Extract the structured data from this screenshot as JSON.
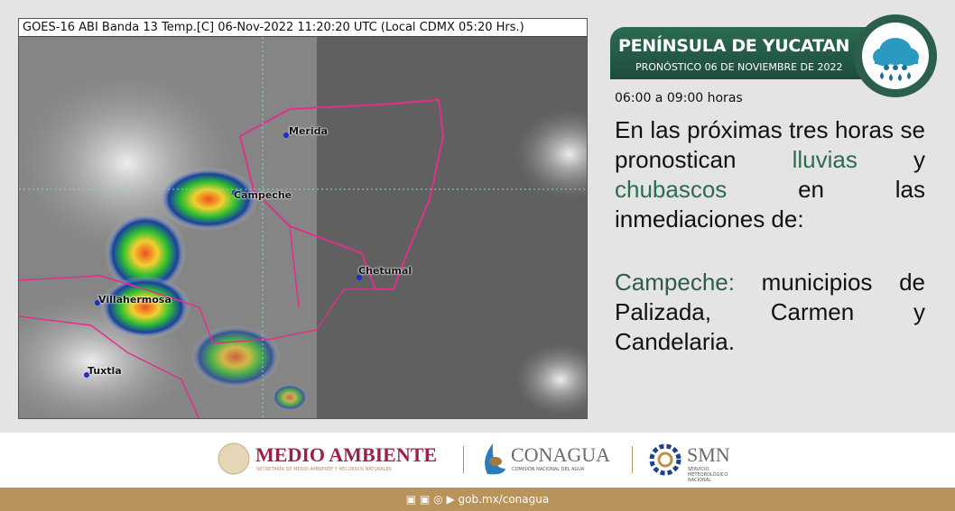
{
  "map": {
    "caption": "GOES-16 ABI Banda 13 Temp.[C] 06-Nov-2022 11:20:20 UTC (Local CDMX  05:20 Hrs.)",
    "cities": [
      "Merida",
      "Campeche",
      "Chetumal",
      "Villahermosa",
      "Tuxtla"
    ],
    "colors": {
      "land_border": "#e0308a",
      "grid": "#7fd6d6",
      "city_dot": "#1a2bd0"
    }
  },
  "header": {
    "title": "PENÍNSULA DE YUCATAN",
    "subtitle": "PRONÓSTICO 06 DE NOVIEMBRE DE 2022",
    "icon": "rain-cloud-icon",
    "color": "#2c6a52"
  },
  "forecast": {
    "hours": "06:00 a 09:00 horas",
    "intro_a": "En las próximas tres horas se pronostican ",
    "lluvias": "lluvias",
    "y": " y ",
    "chubascos": "chubascos",
    "intro_b": " en las inmediaciones de:",
    "state": "Campeche:",
    "municipalities": " municipios de Palizada, Carmen y Candelaria."
  },
  "footer": {
    "medio_ambiente": "MEDIO AMBIENTE",
    "medio_ambiente_sub": "SECRETARÍA DE MEDIO AMBIENTE Y RECURSOS NATURALES",
    "conagua": "CONAGUA",
    "conagua_sub": "COMISIÓN NACIONAL DEL AGUA",
    "smn": "SMN",
    "smn_sub": "SERVICIO METEOROLÓGICO NACIONAL",
    "social_icons": [
      "facebook-icon",
      "twitter-icon",
      "instagram-icon",
      "youtube-icon"
    ],
    "url": "gob.mx/conagua",
    "bar_color": "#b9935a"
  }
}
